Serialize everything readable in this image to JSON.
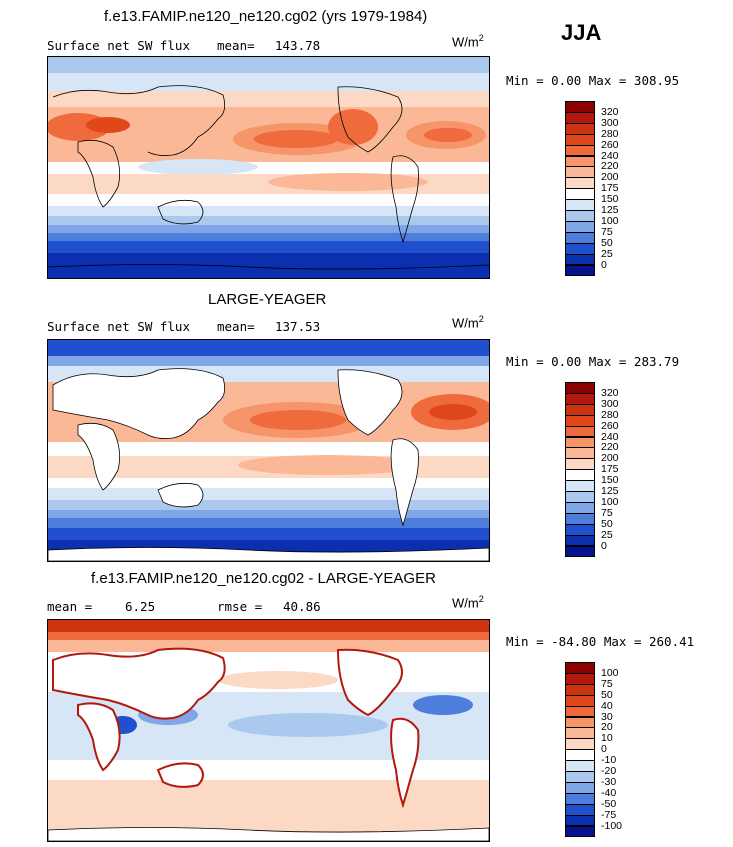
{
  "season": "JJA",
  "panels": [
    {
      "title": "f.e13.FAMIP.ne120_ne120.cg02 (yrs 1979-1984)",
      "left_label": "Surface net SW flux",
      "stat_label": "mean=",
      "stat_value": "143.78",
      "units_base": "W/m",
      "units_exp": "2",
      "minmax": "Min =   0.00 Max = 308.95",
      "colorbar": {
        "labels": [
          "320",
          "300",
          "280",
          "260",
          "240",
          "220",
          "200",
          "175",
          "150",
          "125",
          "100",
          "75",
          "50",
          "25",
          "0"
        ],
        "colors": [
          "#8b0000",
          "#b2180e",
          "#cc3311",
          "#e0471b",
          "#ef6a3c",
          "#f6946a",
          "#fab896",
          "#fbd9c5",
          "#ffffff",
          "#d6e6f7",
          "#abc8ef",
          "#7fa6e6",
          "#4d7edb",
          "#2150cf",
          "#0b2fae",
          "#07138e"
        ]
      }
    },
    {
      "title": "LARGE-YEAGER",
      "left_label": "Surface net SW flux",
      "stat_label": "mean=",
      "stat_value": "137.53",
      "units_base": "W/m",
      "units_exp": "2",
      "minmax": "Min =   0.00 Max = 283.79",
      "colorbar": {
        "labels": [
          "320",
          "300",
          "280",
          "260",
          "240",
          "220",
          "200",
          "175",
          "150",
          "125",
          "100",
          "75",
          "50",
          "25",
          "0"
        ],
        "colors": [
          "#8b0000",
          "#b2180e",
          "#cc3311",
          "#e0471b",
          "#ef6a3c",
          "#f6946a",
          "#fab896",
          "#fbd9c5",
          "#ffffff",
          "#d6e6f7",
          "#abc8ef",
          "#7fa6e6",
          "#4d7edb",
          "#2150cf",
          "#0b2fae",
          "#07138e"
        ]
      }
    },
    {
      "title": "f.e13.FAMIP.ne120_ne120.cg02 - LARGE-YEAGER",
      "left_label": "mean =",
      "left_value": "6.25",
      "stat_label": "rmse =",
      "stat_value": "40.86",
      "units_base": "W/m",
      "units_exp": "2",
      "minmax": "Min = -84.80 Max = 260.41",
      "colorbar": {
        "labels": [
          "100",
          "75",
          "50",
          "40",
          "30",
          "20",
          "10",
          "0",
          "-10",
          "-20",
          "-30",
          "-40",
          "-50",
          "-75",
          "-100"
        ],
        "colors": [
          "#8b0000",
          "#b2180e",
          "#cc3311",
          "#e0471b",
          "#ef6a3c",
          "#f6946a",
          "#fab896",
          "#fbd9c5",
          "#ffffff",
          "#d6e6f7",
          "#abc8ef",
          "#7fa6e6",
          "#4d7edb",
          "#2150cf",
          "#0b2fae",
          "#07138e"
        ]
      }
    }
  ]
}
